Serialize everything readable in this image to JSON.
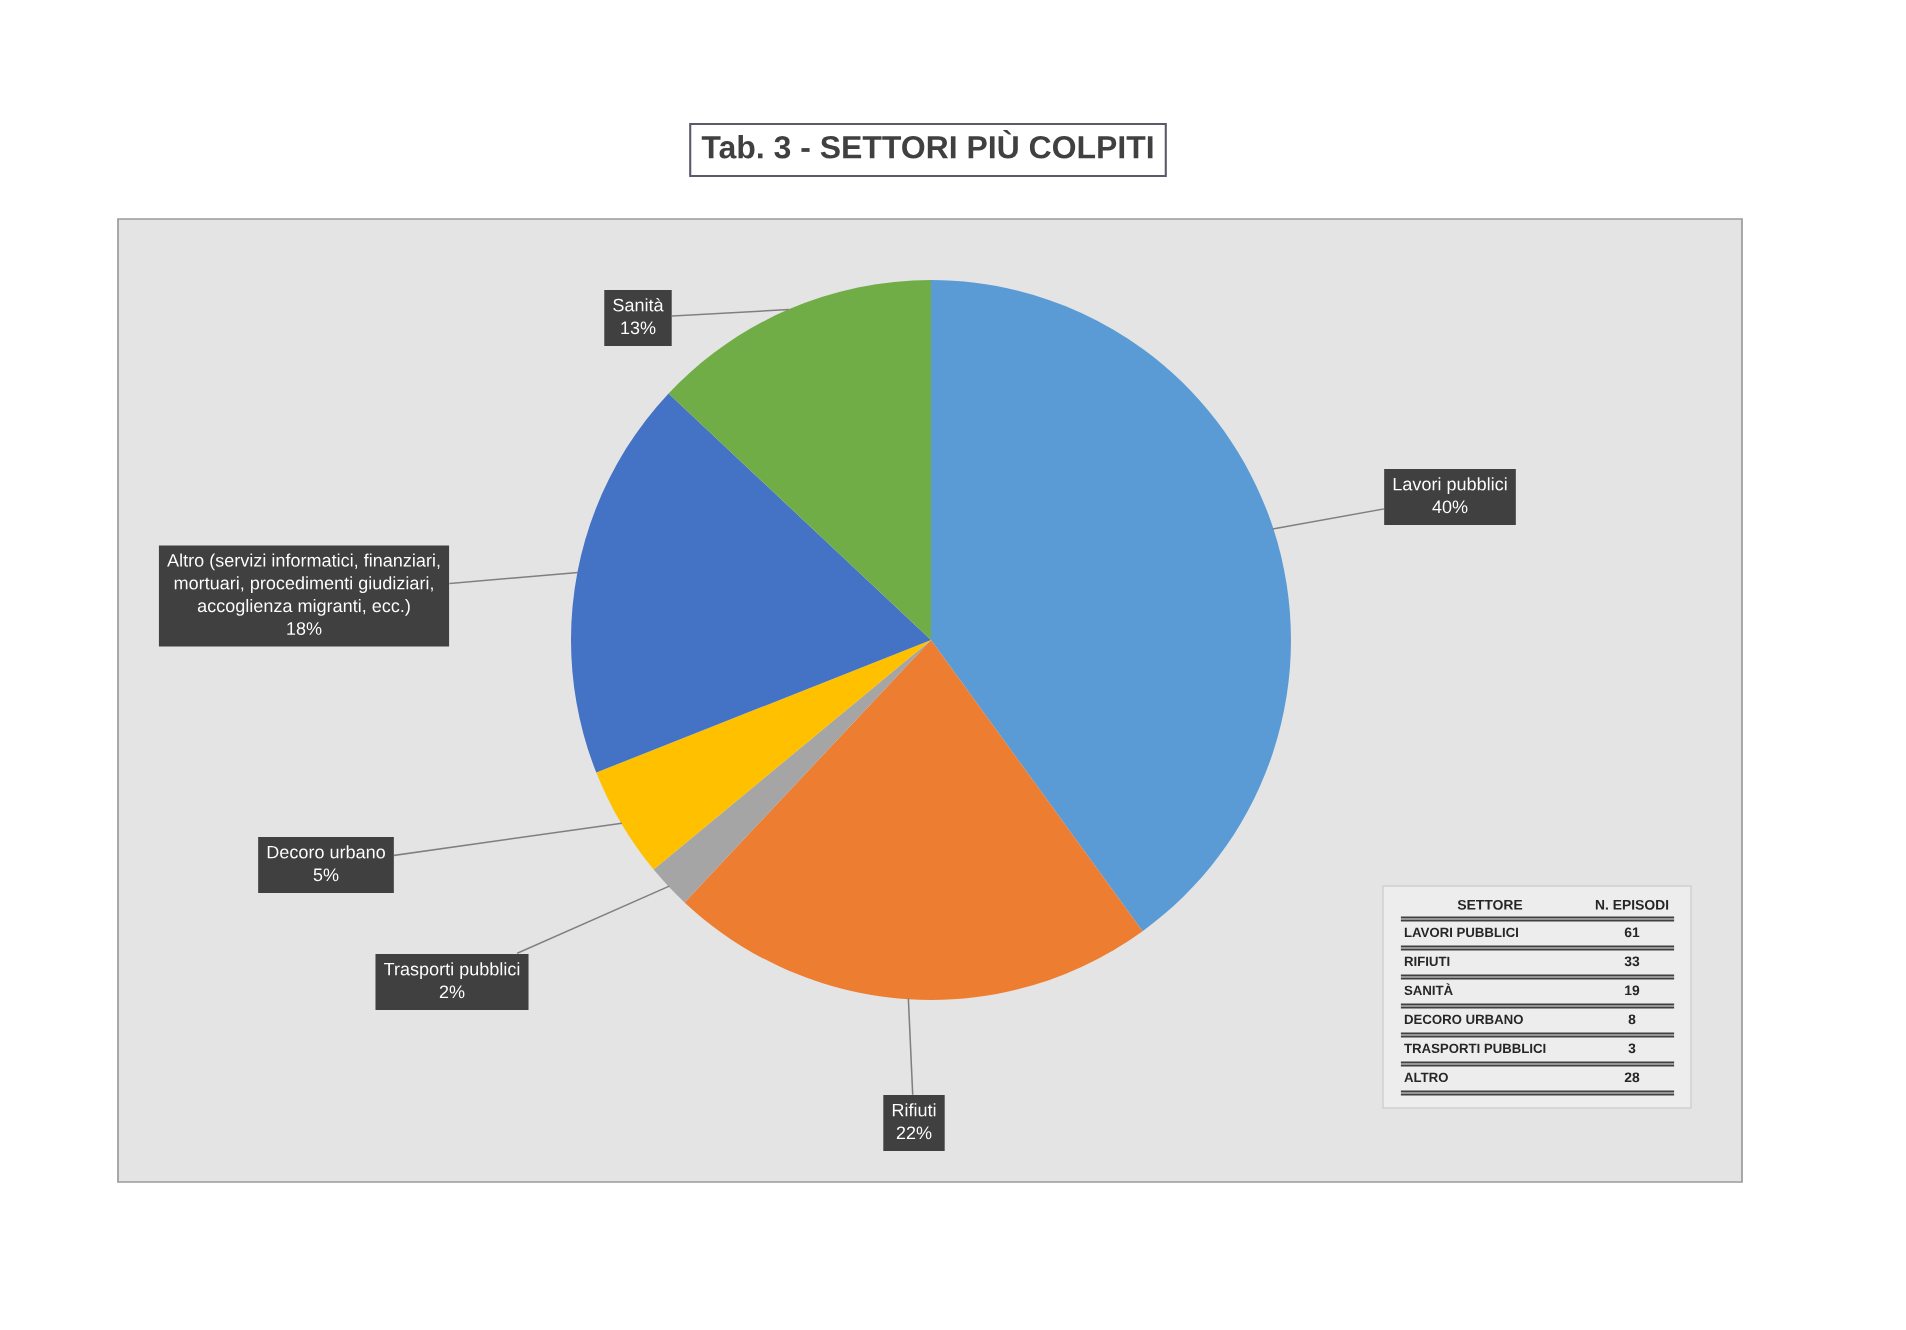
{
  "chart_data": [
    {
      "type": "pie",
      "title": "Tab. 3 - SETTORI PIÙ COLPITI",
      "categories": [
        "Lavori pubblici",
        "Rifiuti",
        "Trasporti pubblici",
        "Decoro urbano",
        "Altro (servizi informatici, finanziari,\nmortuari, procedimenti giudiziari,\naccoglienza migranti, ecc.)",
        "Sanità"
      ],
      "values": [
        40,
        22,
        2,
        5,
        18,
        13
      ],
      "value_labels": [
        "40%",
        "22%",
        "2%",
        "5%",
        "18%",
        "13%"
      ],
      "colors": [
        "#5b9bd5",
        "#ed7d31",
        "#a5a5a5",
        "#ffc000",
        "#4472c4",
        "#70ad47"
      ]
    },
    {
      "type": "other",
      "categories": [
        "LAVORI PUBBLICI",
        "RIFIUTI",
        "SANITÀ",
        "DECORO URBANO",
        "TRASPORTI PUBBLICI",
        "ALTRO"
      ],
      "values": [
        61,
        33,
        19,
        8,
        3,
        28
      ],
      "data_labels": true,
      "annotations": [
        "SETTORE",
        "N. EPISODI"
      ]
    }
  ]
}
